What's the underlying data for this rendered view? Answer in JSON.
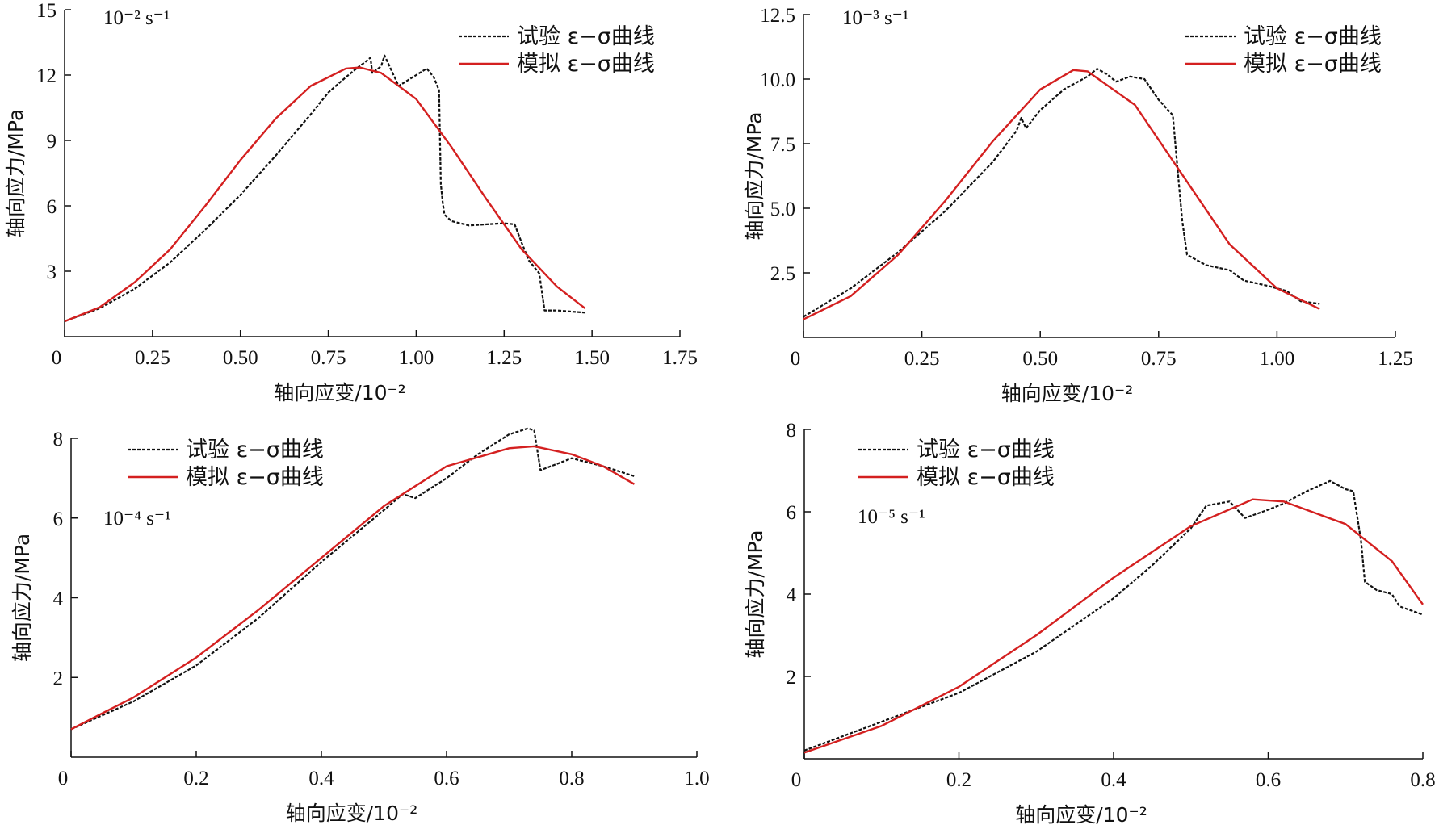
{
  "figure": {
    "colors": {
      "test": "#111111",
      "model": "#d42020",
      "axis": "#111111"
    }
  },
  "chart_data": [
    {
      "type": "line",
      "rate_label": "10⁻² s⁻¹",
      "xlabel": "轴向应变/10⁻²",
      "ylabel": "轴向应力/MPa",
      "xlim": [
        0,
        1.75
      ],
      "ylim": [
        0,
        15
      ],
      "x_ticks": [
        0,
        0.25,
        0.5,
        0.75,
        1.0,
        1.25,
        1.5,
        1.75
      ],
      "x_tick_labels": [
        "0",
        "0.25",
        "0.50",
        "0.75",
        "1.00",
        "1.25",
        "1.50",
        "1.75"
      ],
      "y_ticks": [
        3,
        6,
        9,
        12,
        15
      ],
      "y_tick_labels": [
        "3",
        "6",
        "9",
        "12",
        "15"
      ],
      "legend": {
        "position": "top-right",
        "entries": [
          "试验 ε−σ曲线",
          "模拟 ε−σ曲线"
        ]
      },
      "series": [
        {
          "name": "试验 ε−σ曲线",
          "style": "dashed",
          "points": [
            [
              0.0,
              0.7
            ],
            [
              0.1,
              1.3
            ],
            [
              0.2,
              2.2
            ],
            [
              0.3,
              3.4
            ],
            [
              0.4,
              4.9
            ],
            [
              0.5,
              6.5
            ],
            [
              0.6,
              8.3
            ],
            [
              0.7,
              10.2
            ],
            [
              0.75,
              11.2
            ],
            [
              0.8,
              11.9
            ],
            [
              0.83,
              12.3
            ],
            [
              0.855,
              12.6
            ],
            [
              0.87,
              12.8
            ],
            [
              0.875,
              12.1
            ],
            [
              0.9,
              12.4
            ],
            [
              0.91,
              12.9
            ],
            [
              0.93,
              12.2
            ],
            [
              0.95,
              11.5
            ],
            [
              1.0,
              12.0
            ],
            [
              1.03,
              12.3
            ],
            [
              1.05,
              11.9
            ],
            [
              1.065,
              11.3
            ],
            [
              1.07,
              7.0
            ],
            [
              1.075,
              6.2
            ],
            [
              1.08,
              5.6
            ],
            [
              1.1,
              5.3
            ],
            [
              1.15,
              5.1
            ],
            [
              1.2,
              5.15
            ],
            [
              1.25,
              5.2
            ],
            [
              1.28,
              5.15
            ],
            [
              1.3,
              4.3
            ],
            [
              1.32,
              3.5
            ],
            [
              1.35,
              2.9
            ],
            [
              1.365,
              1.2
            ],
            [
              1.4,
              1.2
            ],
            [
              1.48,
              1.1
            ]
          ]
        },
        {
          "name": "模拟 ε−σ曲线",
          "style": "solid",
          "points": [
            [
              0.0,
              0.7
            ],
            [
              0.1,
              1.35
            ],
            [
              0.2,
              2.5
            ],
            [
              0.3,
              4.0
            ],
            [
              0.4,
              6.0
            ],
            [
              0.5,
              8.1
            ],
            [
              0.6,
              10.0
            ],
            [
              0.7,
              11.5
            ],
            [
              0.8,
              12.3
            ],
            [
              0.84,
              12.35
            ],
            [
              0.9,
              12.1
            ],
            [
              1.0,
              10.9
            ],
            [
              1.1,
              8.7
            ],
            [
              1.2,
              6.3
            ],
            [
              1.3,
              4.0
            ],
            [
              1.4,
              2.3
            ],
            [
              1.48,
              1.3
            ]
          ]
        }
      ]
    },
    {
      "type": "line",
      "rate_label": "10⁻³ s⁻¹",
      "xlabel": "轴向应变/10⁻²",
      "ylabel": "轴向应力/MPa",
      "xlim": [
        0,
        1.25
      ],
      "ylim": [
        0,
        12.5
      ],
      "x_ticks": [
        0,
        0.25,
        0.5,
        0.75,
        1.0,
        1.25
      ],
      "x_tick_labels": [
        "0",
        "0.25",
        "0.50",
        "0.75",
        "1.00",
        "1.25"
      ],
      "y_ticks": [
        2.5,
        5.0,
        7.5,
        10.0,
        12.5
      ],
      "y_tick_labels": [
        "2.5",
        "5.0",
        "7.5",
        "10.0",
        "12.5"
      ],
      "legend": {
        "position": "top-right",
        "entries": [
          "试验 ε−σ曲线",
          "模拟 ε−σ曲线"
        ]
      },
      "series": [
        {
          "name": "试验 ε−σ曲线",
          "style": "dashed",
          "points": [
            [
              0.0,
              0.8
            ],
            [
              0.1,
              1.9
            ],
            [
              0.2,
              3.3
            ],
            [
              0.3,
              4.9
            ],
            [
              0.4,
              6.8
            ],
            [
              0.45,
              8.0
            ],
            [
              0.46,
              8.5
            ],
            [
              0.47,
              8.1
            ],
            [
              0.5,
              8.8
            ],
            [
              0.55,
              9.6
            ],
            [
              0.6,
              10.1
            ],
            [
              0.62,
              10.4
            ],
            [
              0.64,
              10.2
            ],
            [
              0.66,
              9.9
            ],
            [
              0.69,
              10.1
            ],
            [
              0.72,
              10.0
            ],
            [
              0.75,
              9.2
            ],
            [
              0.78,
              8.6
            ],
            [
              0.79,
              6.5
            ],
            [
              0.8,
              4.5
            ],
            [
              0.81,
              3.2
            ],
            [
              0.85,
              2.8
            ],
            [
              0.9,
              2.6
            ],
            [
              0.93,
              2.2
            ],
            [
              0.98,
              2.0
            ],
            [
              1.02,
              1.8
            ],
            [
              1.05,
              1.4
            ],
            [
              1.09,
              1.3
            ]
          ]
        },
        {
          "name": "模拟 ε−σ曲线",
          "style": "solid",
          "points": [
            [
              0.0,
              0.7
            ],
            [
              0.1,
              1.6
            ],
            [
              0.2,
              3.2
            ],
            [
              0.3,
              5.3
            ],
            [
              0.4,
              7.6
            ],
            [
              0.5,
              9.6
            ],
            [
              0.57,
              10.35
            ],
            [
              0.6,
              10.3
            ],
            [
              0.7,
              9.0
            ],
            [
              0.8,
              6.3
            ],
            [
              0.9,
              3.6
            ],
            [
              1.0,
              1.9
            ],
            [
              1.09,
              1.1
            ]
          ]
        }
      ]
    },
    {
      "type": "line",
      "rate_label": "10⁻⁴ s⁻¹",
      "xlabel": "轴向应变/10⁻²",
      "ylabel": "轴向应力/MPa",
      "xlim": [
        0,
        1.0
      ],
      "ylim": [
        0,
        8
      ],
      "x_ticks": [
        0,
        0.2,
        0.4,
        0.6,
        0.8,
        1.0
      ],
      "x_tick_labels": [
        "0",
        "0.2",
        "0.4",
        "0.6",
        "0.8",
        "1.0"
      ],
      "y_ticks": [
        2,
        4,
        6,
        8
      ],
      "y_tick_labels": [
        "2",
        "4",
        "6",
        "8"
      ],
      "legend": {
        "position": "top-left",
        "entries": [
          "试验 ε−σ曲线",
          "模拟 ε−σ曲线"
        ]
      },
      "series": [
        {
          "name": "试验 ε−σ曲线",
          "style": "dashed",
          "points": [
            [
              0.0,
              0.7
            ],
            [
              0.1,
              1.4
            ],
            [
              0.2,
              2.3
            ],
            [
              0.3,
              3.5
            ],
            [
              0.4,
              4.9
            ],
            [
              0.5,
              6.2
            ],
            [
              0.53,
              6.6
            ],
            [
              0.55,
              6.5
            ],
            [
              0.6,
              7.0
            ],
            [
              0.65,
              7.6
            ],
            [
              0.7,
              8.1
            ],
            [
              0.73,
              8.25
            ],
            [
              0.74,
              8.2
            ],
            [
              0.75,
              7.2
            ],
            [
              0.8,
              7.5
            ],
            [
              0.85,
              7.3
            ],
            [
              0.9,
              7.05
            ]
          ]
        },
        {
          "name": "模拟 ε−σ曲线",
          "style": "solid",
          "points": [
            [
              0.0,
              0.7
            ],
            [
              0.1,
              1.5
            ],
            [
              0.2,
              2.5
            ],
            [
              0.3,
              3.7
            ],
            [
              0.4,
              5.0
            ],
            [
              0.5,
              6.3
            ],
            [
              0.6,
              7.3
            ],
            [
              0.7,
              7.75
            ],
            [
              0.74,
              7.8
            ],
            [
              0.8,
              7.6
            ],
            [
              0.85,
              7.3
            ],
            [
              0.9,
              6.85
            ]
          ]
        }
      ]
    },
    {
      "type": "line",
      "rate_label": "10⁻⁵ s⁻¹",
      "xlabel": "轴向应变/10⁻²",
      "ylabel": "轴向应力/MPa",
      "xlim": [
        0,
        0.8
      ],
      "ylim": [
        0,
        8
      ],
      "x_ticks": [
        0,
        0.2,
        0.4,
        0.6,
        0.8
      ],
      "x_tick_labels": [
        "0",
        "0.2",
        "0.4",
        "0.6",
        "0.8"
      ],
      "y_ticks": [
        2,
        4,
        6,
        8
      ],
      "y_tick_labels": [
        "2",
        "4",
        "6",
        "8"
      ],
      "legend": {
        "position": "top-left",
        "entries": [
          "试验 ε−σ曲线",
          "模拟 ε−σ曲线"
        ]
      },
      "series": [
        {
          "name": "试验 ε−σ曲线",
          "style": "dashed",
          "points": [
            [
              0.0,
              0.2
            ],
            [
              0.1,
              0.9
            ],
            [
              0.2,
              1.6
            ],
            [
              0.3,
              2.6
            ],
            [
              0.4,
              3.9
            ],
            [
              0.45,
              4.7
            ],
            [
              0.5,
              5.6
            ],
            [
              0.52,
              6.15
            ],
            [
              0.55,
              6.25
            ],
            [
              0.57,
              5.85
            ],
            [
              0.6,
              6.05
            ],
            [
              0.62,
              6.2
            ],
            [
              0.65,
              6.5
            ],
            [
              0.68,
              6.75
            ],
            [
              0.7,
              6.55
            ],
            [
              0.71,
              6.5
            ],
            [
              0.72,
              5.3
            ],
            [
              0.725,
              4.3
            ],
            [
              0.74,
              4.1
            ],
            [
              0.76,
              4.0
            ],
            [
              0.77,
              3.7
            ],
            [
              0.8,
              3.5
            ]
          ]
        },
        {
          "name": "模拟 ε−σ曲线",
          "style": "solid",
          "points": [
            [
              0.0,
              0.15
            ],
            [
              0.1,
              0.8
            ],
            [
              0.2,
              1.75
            ],
            [
              0.3,
              3.0
            ],
            [
              0.4,
              4.4
            ],
            [
              0.5,
              5.65
            ],
            [
              0.58,
              6.3
            ],
            [
              0.62,
              6.25
            ],
            [
              0.7,
              5.7
            ],
            [
              0.76,
              4.8
            ],
            [
              0.8,
              3.75
            ]
          ]
        }
      ]
    }
  ]
}
